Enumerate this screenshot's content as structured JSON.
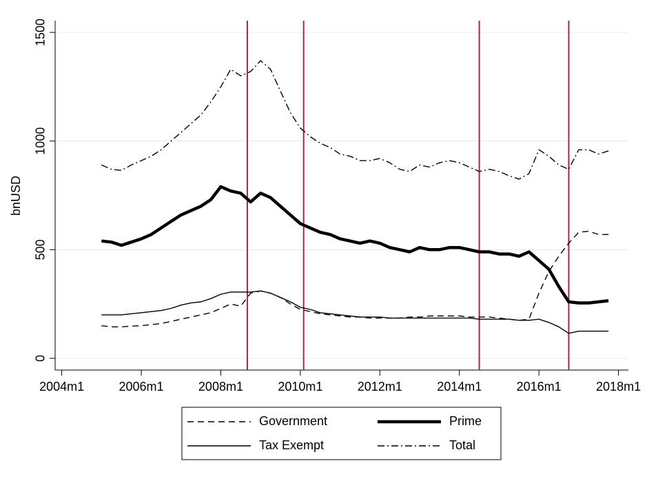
{
  "chart_data": {
    "type": "line",
    "y_label": "bnUSD",
    "x": [
      "2005m1",
      "2005m4",
      "2005m7",
      "2005m10",
      "2006m1",
      "2006m4",
      "2006m7",
      "2006m10",
      "2007m1",
      "2007m4",
      "2007m7",
      "2007m10",
      "2008m1",
      "2008m4",
      "2008m7",
      "2008m10",
      "2009m1",
      "2009m4",
      "2009m7",
      "2009m10",
      "2010m1",
      "2010m4",
      "2010m7",
      "2010m10",
      "2011m1",
      "2011m4",
      "2011m7",
      "2011m10",
      "2012m1",
      "2012m4",
      "2012m7",
      "2012m10",
      "2013m1",
      "2013m4",
      "2013m7",
      "2013m10",
      "2014m1",
      "2014m4",
      "2014m7",
      "2014m10",
      "2015m1",
      "2015m4",
      "2015m7",
      "2015m10",
      "2016m1",
      "2016m4",
      "2016m7",
      "2016m10",
      "2017m1",
      "2017m4",
      "2017m7",
      "2017m10"
    ],
    "series": [
      {
        "name": "Government",
        "color": "#000000",
        "dash": "9,6",
        "width": 1.4,
        "values": [
          150,
          145,
          145,
          148,
          150,
          155,
          160,
          170,
          180,
          190,
          200,
          210,
          230,
          250,
          240,
          300,
          310,
          300,
          280,
          250,
          225,
          215,
          205,
          200,
          195,
          190,
          190,
          185,
          185,
          185,
          185,
          190,
          190,
          195,
          195,
          195,
          195,
          190,
          190,
          190,
          185,
          180,
          175,
          180,
          300,
          400,
          470,
          530,
          580,
          585,
          570,
          570
        ]
      },
      {
        "name": "Prime",
        "color": "#000000",
        "dash": "none",
        "width": 4.5,
        "values": [
          540,
          535,
          520,
          535,
          550,
          570,
          600,
          630,
          660,
          680,
          700,
          730,
          790,
          770,
          760,
          720,
          760,
          740,
          700,
          660,
          620,
          600,
          580,
          570,
          550,
          540,
          530,
          540,
          530,
          510,
          500,
          490,
          510,
          500,
          500,
          510,
          510,
          500,
          490,
          490,
          480,
          480,
          470,
          490,
          450,
          410,
          330,
          260,
          255,
          255,
          260,
          265
        ]
      },
      {
        "name": "Tax Exempt",
        "color": "#000000",
        "dash": "none",
        "width": 1.4,
        "values": [
          200,
          200,
          200,
          205,
          210,
          215,
          220,
          230,
          245,
          255,
          260,
          275,
          295,
          305,
          305,
          305,
          310,
          300,
          280,
          260,
          235,
          225,
          210,
          205,
          200,
          195,
          190,
          190,
          190,
          185,
          185,
          185,
          185,
          185,
          185,
          185,
          185,
          185,
          180,
          180,
          180,
          180,
          175,
          175,
          180,
          165,
          145,
          115,
          125,
          125,
          125,
          125
        ]
      },
      {
        "name": "Total",
        "color": "#000000",
        "dash": "10,4,2,4",
        "width": 1.4,
        "values": [
          890,
          870,
          865,
          890,
          910,
          930,
          960,
          1000,
          1040,
          1080,
          1120,
          1180,
          1250,
          1330,
          1300,
          1320,
          1370,
          1330,
          1230,
          1130,
          1060,
          1020,
          990,
          970,
          940,
          930,
          910,
          910,
          920,
          900,
          870,
          860,
          890,
          880,
          900,
          910,
          900,
          880,
          860,
          870,
          860,
          840,
          825,
          850,
          960,
          930,
          890,
          870,
          960,
          960,
          940,
          955
        ]
      }
    ],
    "xlim": [
      "2003m11",
      "2018m4"
    ],
    "xticks": [
      "2004m1",
      "2006m1",
      "2008m1",
      "2010m1",
      "2012m1",
      "2014m1",
      "2016m1",
      "2018m1"
    ],
    "ylim": [
      -54,
      1554
    ],
    "yticks": [
      0,
      500,
      1000,
      1500
    ],
    "grid": true,
    "vlines": [
      "2008m9",
      "2010m2",
      "2014m7",
      "2016m10"
    ],
    "vline_color": "#b0204a",
    "legend": "bottom"
  }
}
